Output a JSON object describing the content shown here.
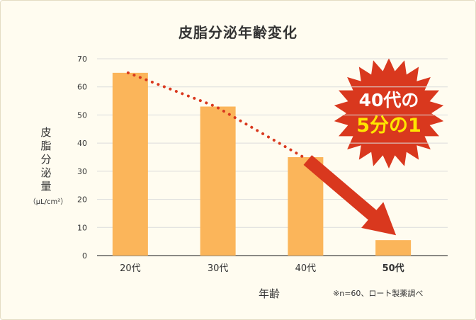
{
  "chart_data": {
    "type": "bar",
    "title": "皮脂分泌年齢変化",
    "xlabel": "年齢",
    "ylabel": "皮脂分泌量",
    "yunit": "（μL/cm²）",
    "categories": [
      "20代",
      "30代",
      "40代",
      "50代"
    ],
    "values": [
      65,
      53,
      35,
      5.5
    ],
    "highlight_category": "50代",
    "ylim": [
      0,
      70
    ],
    "yticks": [
      0,
      10,
      20,
      30,
      40,
      50,
      60,
      70
    ],
    "grid": true,
    "bar_color": "#fbb55a",
    "trend_color": "#d9381e",
    "note": "※n=60、ロート製薬調べ",
    "callout": {
      "line1": "40代の",
      "line2": "5分の1"
    }
  }
}
